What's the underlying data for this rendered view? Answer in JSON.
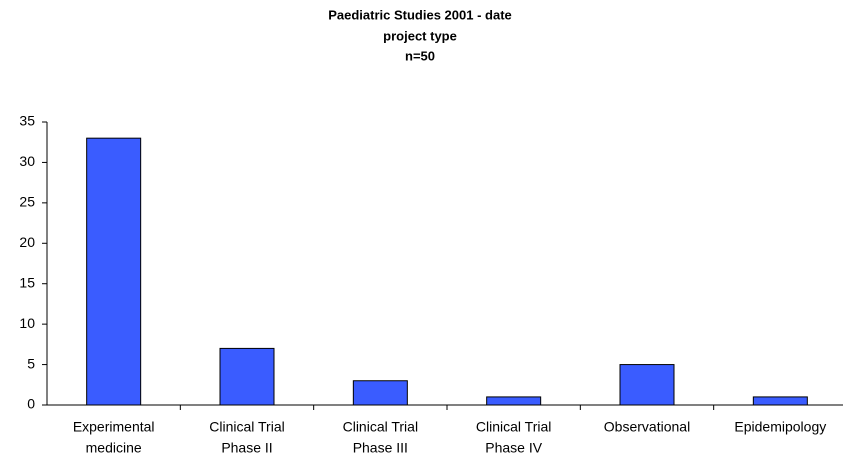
{
  "chart_data": {
    "type": "bar",
    "title": "Paediatric Studies 2001 - date",
    "subtitle": [
      "project type",
      "n=50"
    ],
    "categories": [
      [
        "Experimental",
        "medicine"
      ],
      [
        "Clinical Trial",
        "Phase II"
      ],
      [
        "Clinical Trial",
        "Phase III"
      ],
      [
        "Clinical Trial",
        "Phase IV"
      ],
      [
        "Observational"
      ],
      [
        "Epidemipology"
      ]
    ],
    "values": [
      33,
      7,
      3,
      1,
      5,
      1
    ],
    "color": "#3a5cff",
    "ylim": [
      0,
      35
    ],
    "yticks": [
      0,
      5,
      10,
      15,
      20,
      25,
      30,
      35
    ],
    "grid": false
  }
}
